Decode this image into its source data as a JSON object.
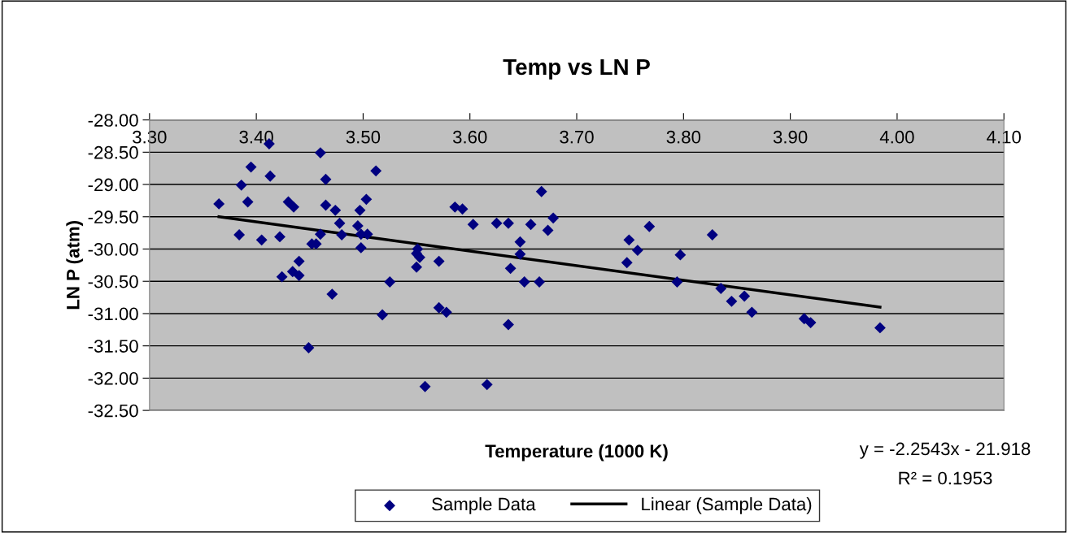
{
  "chart_data": {
    "type": "scatter",
    "title": "Temp vs LN P",
    "xlabel": "Temperature (1000 K)",
    "ylabel": "LN P (atm)",
    "xlim": [
      3.3,
      4.1
    ],
    "xticks": [
      {
        "value": 3.3,
        "label": "3.30"
      },
      {
        "value": 3.4,
        "label": "3.40"
      },
      {
        "value": 3.5,
        "label": "3.50"
      },
      {
        "value": 3.6,
        "label": "3.60"
      },
      {
        "value": 3.7,
        "label": "3.70"
      },
      {
        "value": 3.8,
        "label": "3.80"
      },
      {
        "value": 3.9,
        "label": "3.90"
      },
      {
        "value": 4.0,
        "label": "4.00"
      },
      {
        "value": 4.1,
        "label": "4.10"
      }
    ],
    "ylim": [
      -32.5,
      -28.0
    ],
    "yticks": [
      {
        "value": -28.0,
        "label": "-28.00"
      },
      {
        "value": -28.5,
        "label": "-28.50"
      },
      {
        "value": -29.0,
        "label": "-29.00"
      },
      {
        "value": -29.5,
        "label": "-29.50"
      },
      {
        "value": -30.0,
        "label": "-30.00"
      },
      {
        "value": -30.5,
        "label": "-30.50"
      },
      {
        "value": -31.0,
        "label": "-31.00"
      },
      {
        "value": -31.5,
        "label": "-31.50"
      },
      {
        "value": -32.0,
        "label": "-32.00"
      },
      {
        "value": -32.5,
        "label": "-32.50"
      }
    ],
    "grid": "y",
    "legend": "bottom",
    "marker": "diamond",
    "annotations": [
      "y = -2.2543x - 21.918",
      "R² = 0.1953"
    ],
    "series": [
      {
        "name": "Sample Data",
        "color": "#000080",
        "x": [
          3.365,
          3.386,
          3.395,
          3.412,
          3.413,
          3.392,
          3.384,
          3.405,
          3.422,
          3.43,
          3.435,
          3.44,
          3.434,
          3.44,
          3.424,
          3.449,
          3.46,
          3.465,
          3.465,
          3.474,
          3.478,
          3.48,
          3.46,
          3.452,
          3.456,
          3.471,
          3.497,
          3.503,
          3.495,
          3.498,
          3.504,
          3.498,
          3.512,
          3.525,
          3.518,
          3.558,
          3.551,
          3.55,
          3.553,
          3.55,
          3.571,
          3.571,
          3.578,
          3.586,
          3.593,
          3.603,
          3.616,
          3.625,
          3.636,
          3.647,
          3.647,
          3.638,
          3.636,
          3.651,
          3.657,
          3.665,
          3.667,
          3.673,
          3.678,
          3.749,
          3.757,
          3.747,
          3.768,
          3.794,
          3.797,
          3.827,
          3.835,
          3.845,
          3.857,
          3.864,
          3.913,
          3.919,
          3.984
        ],
        "values": [
          -29.3,
          -29.01,
          -28.73,
          -28.37,
          -28.87,
          -29.27,
          -29.78,
          -29.86,
          -29.81,
          -29.27,
          -29.35,
          -30.19,
          -30.35,
          -30.41,
          -30.43,
          -31.53,
          -28.51,
          -28.92,
          -29.32,
          -29.4,
          -29.6,
          -29.78,
          -29.77,
          -29.92,
          -29.92,
          -30.7,
          -29.4,
          -29.23,
          -29.64,
          -29.77,
          -29.77,
          -29.98,
          -28.79,
          -30.51,
          -31.02,
          -32.13,
          -30.0,
          -30.07,
          -30.13,
          -30.28,
          -30.19,
          -30.91,
          -30.98,
          -29.35,
          -29.38,
          -29.62,
          -32.1,
          -29.6,
          -29.6,
          -29.89,
          -30.08,
          -30.3,
          -31.17,
          -30.51,
          -29.62,
          -30.51,
          -29.11,
          -29.71,
          -29.52,
          -29.86,
          -30.02,
          -30.21,
          -29.65,
          -30.51,
          -30.09,
          -29.78,
          -30.61,
          -30.81,
          -30.73,
          -30.98,
          -31.08,
          -31.14,
          -31.22
        ]
      },
      {
        "name": "Linear (Sample Data)",
        "type": "line",
        "marker": "none",
        "color": "#000000",
        "x": [
          3.365,
          3.984
        ],
        "values": [
          -29.5,
          -30.9
        ]
      }
    ]
  }
}
